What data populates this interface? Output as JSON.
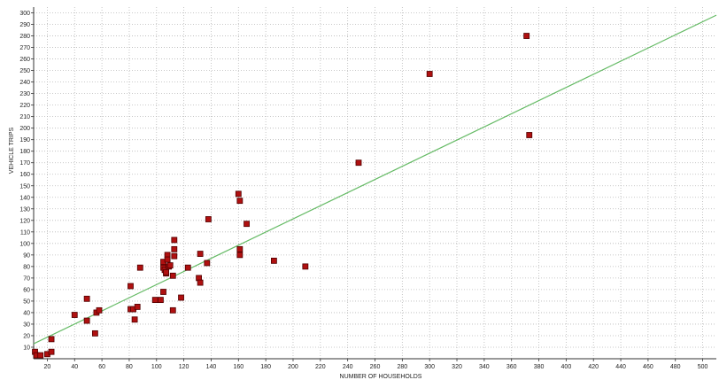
{
  "chart_data": {
    "type": "scatter",
    "xlabel": "NUMBER OF HOUSEHOLDS",
    "ylabel": "VEHICLE TRIPS",
    "xlim": [
      10,
      510
    ],
    "ylim": [
      0,
      305
    ],
    "x_ticks": [
      20,
      40,
      60,
      80,
      100,
      120,
      140,
      160,
      180,
      200,
      220,
      240,
      260,
      280,
      300,
      320,
      340,
      360,
      380,
      400,
      420,
      440,
      460,
      480,
      500
    ],
    "y_ticks": [
      10,
      20,
      30,
      40,
      50,
      60,
      70,
      80,
      90,
      100,
      110,
      120,
      130,
      140,
      150,
      160,
      170,
      180,
      190,
      200,
      210,
      220,
      230,
      240,
      250,
      260,
      270,
      280,
      290,
      300
    ],
    "grid": true,
    "colors": {
      "marker": "#b01010",
      "marker_edge": "#500000",
      "trend": "#66bb66",
      "grid": "#b8b8b8",
      "axis": "#333333"
    },
    "series": [
      {
        "marker": "square",
        "points": [
          [
            11,
            6
          ],
          [
            12,
            3
          ],
          [
            15,
            3
          ],
          [
            20,
            4
          ],
          [
            23,
            6
          ],
          [
            23,
            17
          ],
          [
            40,
            38
          ],
          [
            49,
            52
          ],
          [
            49,
            33
          ],
          [
            55,
            22
          ],
          [
            56,
            40
          ],
          [
            58,
            42
          ],
          [
            81,
            63
          ],
          [
            81,
            43
          ],
          [
            83,
            43
          ],
          [
            84,
            34
          ],
          [
            86,
            45
          ],
          [
            88,
            79
          ],
          [
            99,
            51
          ],
          [
            103,
            51
          ],
          [
            105,
            58
          ],
          [
            105,
            84
          ],
          [
            105,
            79
          ],
          [
            106,
            77
          ],
          [
            107,
            74
          ],
          [
            107,
            75
          ],
          [
            108,
            90
          ],
          [
            108,
            86
          ],
          [
            109,
            80
          ],
          [
            110,
            81
          ],
          [
            112,
            42
          ],
          [
            112,
            72
          ],
          [
            113,
            103
          ],
          [
            113,
            95
          ],
          [
            113,
            89
          ],
          [
            118,
            53
          ],
          [
            123,
            79
          ],
          [
            131,
            70
          ],
          [
            132,
            66
          ],
          [
            132,
            91
          ],
          [
            137,
            83
          ],
          [
            138,
            121
          ],
          [
            160,
            143
          ],
          [
            161,
            137
          ],
          [
            161,
            95
          ],
          [
            161,
            90
          ],
          [
            166,
            117
          ],
          [
            186,
            85
          ],
          [
            209,
            80
          ],
          [
            248,
            170
          ],
          [
            300,
            247
          ],
          [
            371,
            280
          ],
          [
            373,
            194
          ]
        ]
      }
    ],
    "trendline": {
      "x": [
        10,
        510
      ],
      "y": [
        13,
        298
      ]
    }
  }
}
